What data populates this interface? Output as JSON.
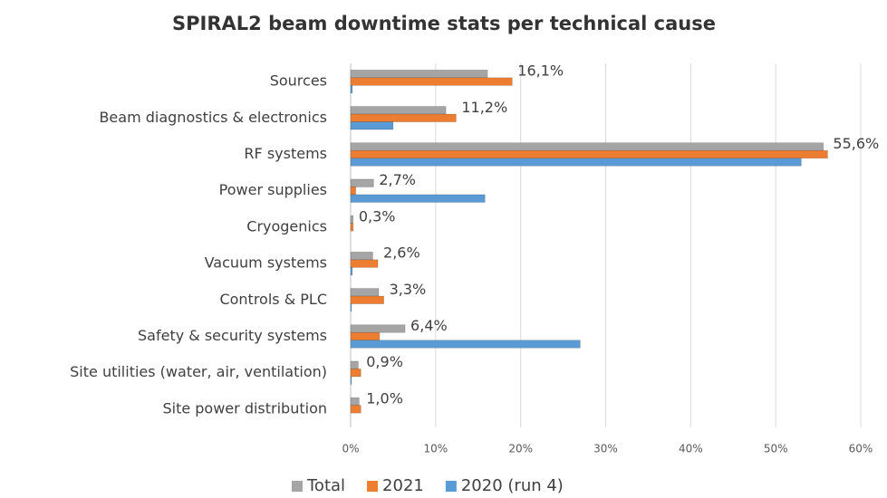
{
  "chart_data": {
    "type": "hbar",
    "title": "SPIRAL2 beam downtime stats per technical cause",
    "categories": [
      "Sources",
      "Beam diagnostics & electronics",
      "RF systems",
      "Power supplies",
      "Cryogenics",
      "Vacuum systems",
      "Controls & PLC",
      "Safety & security systems",
      "Site utilities (water, air, ventilation)",
      "Site power distribution"
    ],
    "series": [
      {
        "name": "Total",
        "color": "#a5a5a5",
        "values": [
          16.1,
          11.2,
          55.6,
          2.7,
          0.3,
          2.6,
          3.3,
          6.4,
          0.9,
          1.0
        ],
        "value_labels": [
          "16,1%",
          "11,2%",
          "55,6%",
          "2,7%",
          "0,3%",
          "2,6%",
          "3,3%",
          "6,4%",
          "0,9%",
          "1,0%"
        ]
      },
      {
        "name": "2021",
        "color": "#ed7d31",
        "values": [
          19.0,
          12.4,
          56.1,
          0.6,
          0.3,
          3.2,
          3.9,
          3.4,
          1.2,
          1.2
        ]
      },
      {
        "name": "2020 (run 4)",
        "color": "#5b9bd5",
        "values": [
          0.2,
          5.0,
          53.0,
          15.8,
          0,
          0.2,
          0.1,
          27.0,
          0.1,
          0
        ]
      }
    ],
    "xlim": [
      0,
      60
    ],
    "xticks": [
      {
        "value": 0,
        "label": "0%"
      },
      {
        "value": 10,
        "label": "10%"
      },
      {
        "value": 20,
        "label": "20%"
      },
      {
        "value": 30,
        "label": "30%"
      },
      {
        "value": 40,
        "label": "40%"
      },
      {
        "value": 50,
        "label": "50%"
      },
      {
        "value": 60,
        "label": "60%"
      }
    ],
    "grid": true,
    "legend": "bottom"
  }
}
